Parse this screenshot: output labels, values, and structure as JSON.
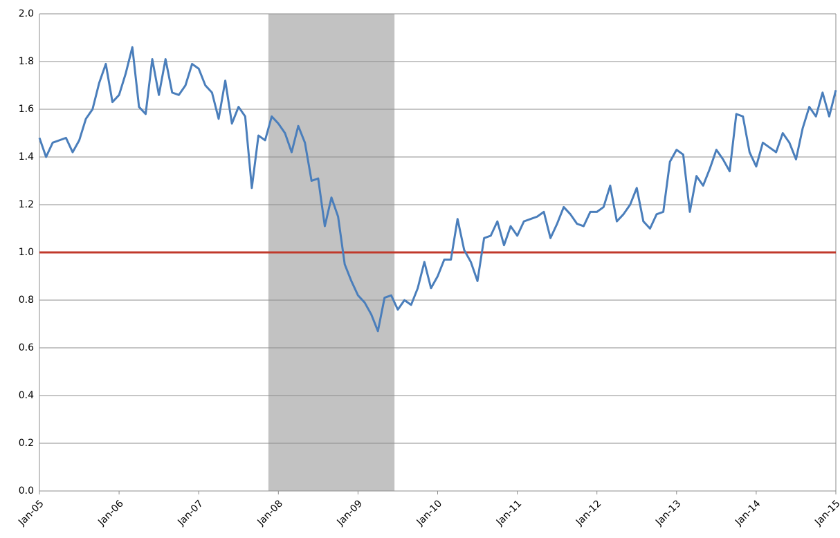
{
  "chart_data": {
    "type": "line",
    "categories": [
      "Jan-05",
      null,
      null,
      null,
      null,
      null,
      null,
      null,
      null,
      null,
      null,
      null,
      "Jan-06",
      null,
      null,
      null,
      null,
      null,
      null,
      null,
      null,
      null,
      null,
      null,
      "Jan-07",
      null,
      null,
      null,
      null,
      null,
      null,
      null,
      null,
      null,
      null,
      null,
      "Jan-08",
      null,
      null,
      null,
      null,
      null,
      null,
      null,
      null,
      null,
      null,
      null,
      "Jan-09",
      null,
      null,
      null,
      null,
      null,
      null,
      null,
      null,
      null,
      null,
      null,
      "Jan-10",
      null,
      null,
      null,
      null,
      null,
      null,
      null,
      null,
      null,
      null,
      null,
      "Jan-11",
      null,
      null,
      null,
      null,
      null,
      null,
      null,
      null,
      null,
      null,
      null,
      "Jan-12",
      null,
      null,
      null,
      null,
      null,
      null,
      null,
      null,
      null,
      null,
      null,
      "Jan-13",
      null,
      null,
      null,
      null,
      null,
      null,
      null,
      null,
      null,
      null,
      null,
      "Jan-14",
      null,
      null,
      null,
      null,
      null,
      null,
      null,
      null,
      null,
      null,
      null,
      "Jan-15"
    ],
    "values": [
      1.48,
      1.4,
      1.46,
      1.47,
      1.48,
      1.42,
      1.47,
      1.56,
      1.6,
      1.71,
      1.79,
      1.63,
      1.66,
      1.75,
      1.86,
      1.61,
      1.58,
      1.81,
      1.66,
      1.81,
      1.67,
      1.66,
      1.7,
      1.79,
      1.77,
      1.7,
      1.67,
      1.56,
      1.72,
      1.54,
      1.61,
      1.57,
      1.27,
      1.49,
      1.47,
      1.57,
      1.54,
      1.5,
      1.42,
      1.53,
      1.46,
      1.3,
      1.31,
      1.11,
      1.23,
      1.15,
      0.95,
      0.88,
      0.82,
      0.79,
      0.74,
      0.67,
      0.81,
      0.82,
      0.76,
      0.8,
      0.78,
      0.85,
      0.96,
      0.85,
      0.9,
      0.97,
      0.97,
      1.14,
      1.01,
      0.96,
      0.88,
      1.06,
      1.07,
      1.13,
      1.03,
      1.11,
      1.07,
      1.13,
      1.14,
      1.15,
      1.17,
      1.06,
      1.12,
      1.19,
      1.16,
      1.12,
      1.11,
      1.17,
      1.17,
      1.19,
      1.28,
      1.13,
      1.16,
      1.2,
      1.27,
      1.13,
      1.1,
      1.16,
      1.17,
      1.38,
      1.43,
      1.41,
      1.17,
      1.32,
      1.28,
      1.35,
      1.43,
      1.39,
      1.34,
      1.58,
      1.57,
      1.42,
      1.36,
      1.46,
      1.44,
      1.42,
      1.5,
      1.46,
      1.39,
      1.52,
      1.61,
      1.57,
      1.67,
      1.57,
      1.68
    ],
    "color": "#4a7ebb",
    "ylim": [
      0,
      2
    ],
    "yticks": [
      {
        "value": 0,
        "label": "0.0"
      },
      0.2,
      0.4,
      0.6,
      0.8,
      {
        "value": 1,
        "label": "1.0"
      },
      1.2,
      1.4,
      1.6,
      1.8,
      {
        "value": 2,
        "label": "2.0"
      }
    ],
    "grid": true,
    "reference_line": {
      "value": 1,
      "color": "#c0392b"
    },
    "shade": {
      "start": 34.5,
      "end": 53.5,
      "color": "#c2c2c2"
    }
  }
}
